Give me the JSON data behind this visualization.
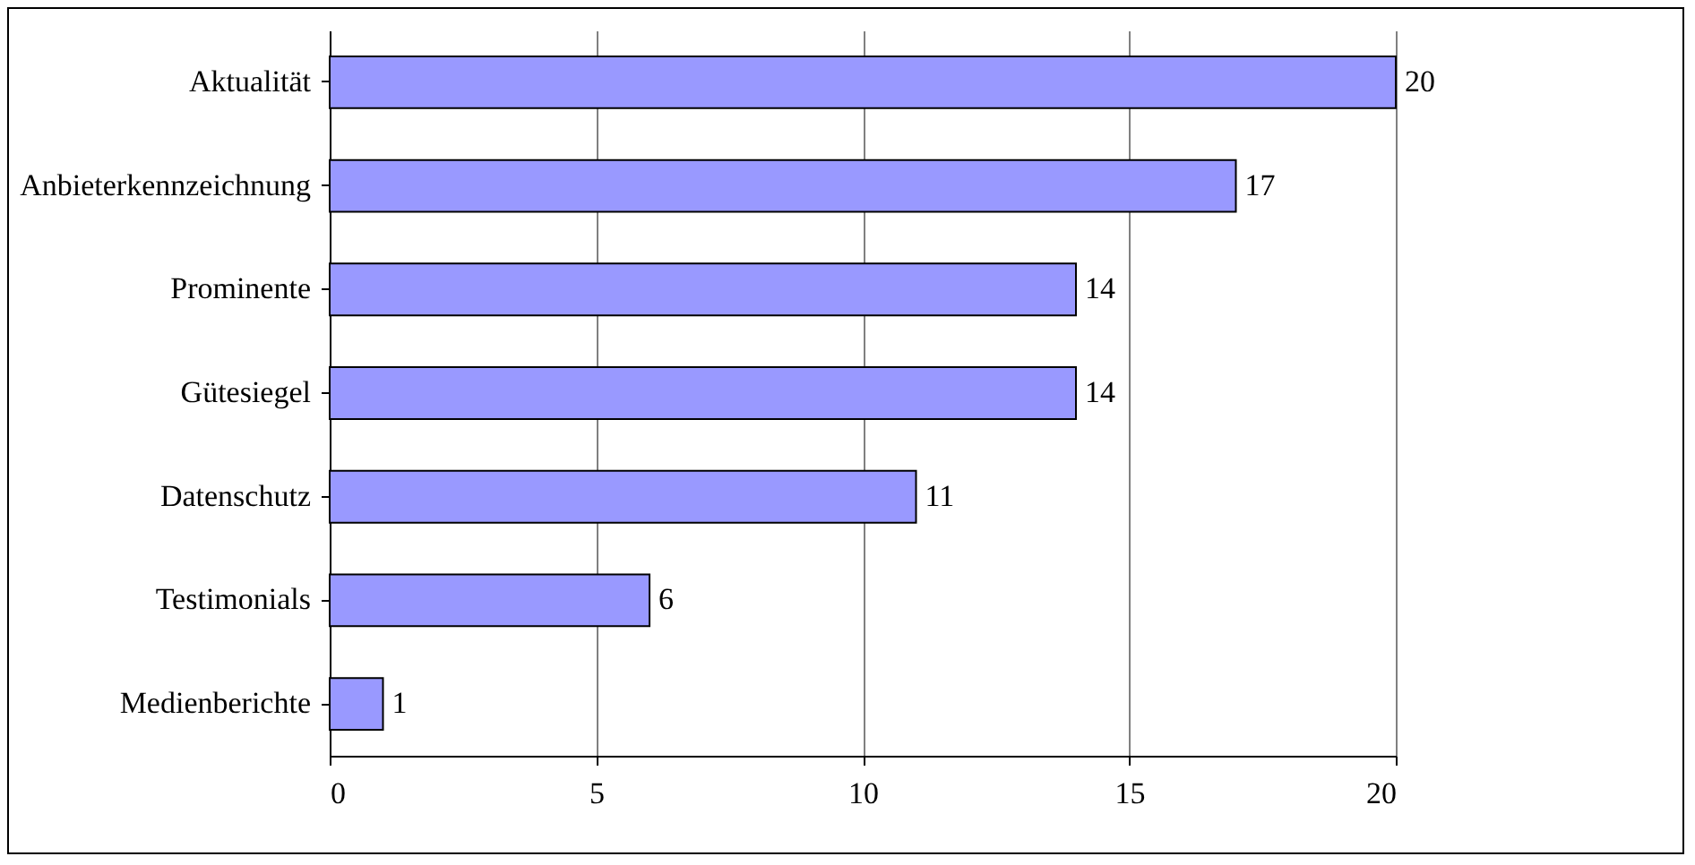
{
  "chart_data": {
    "type": "bar",
    "orientation": "horizontal",
    "categories": [
      "Aktualität",
      "Anbieterkennzeichnung",
      "Prominente",
      "Gütesiegel",
      "Datenschutz",
      "Testimonials",
      "Medienberichte"
    ],
    "values": [
      20,
      17,
      14,
      14,
      11,
      6,
      1
    ],
    "color": "#9999ff",
    "xlim": [
      0,
      20
    ],
    "xticks": [
      0,
      5,
      10,
      15,
      20
    ],
    "grid": "x",
    "data_labels": true
  }
}
